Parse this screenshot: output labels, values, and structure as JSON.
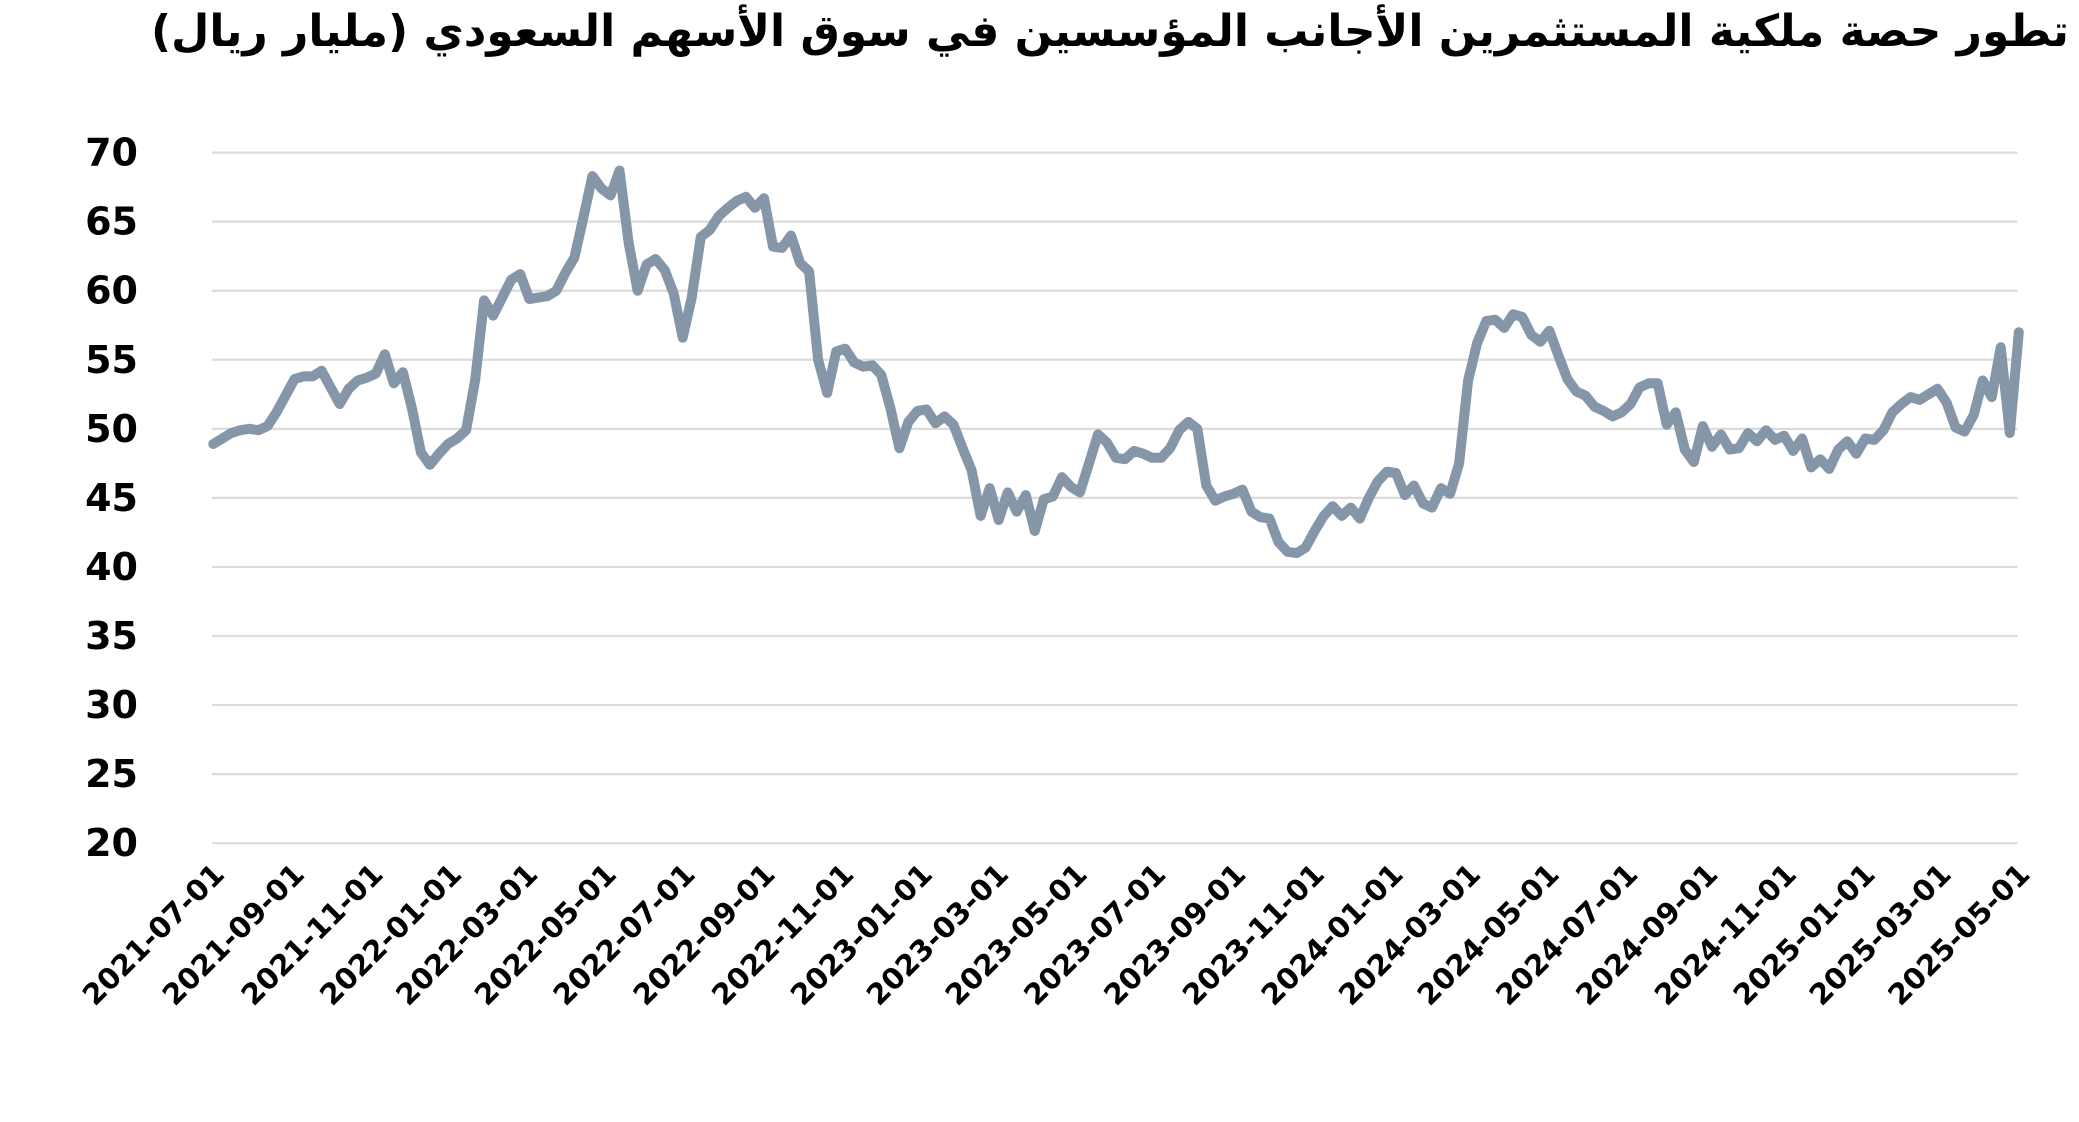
{
  "title": "تطور حصة ملكية المستثمرين الأجانب المؤسسين في سوق الأسهم السعودي (مليار ريال)",
  "colors": {
    "line": "#8496A8",
    "grid": "#DCDCDC",
    "text": "#000000",
    "background": "#FFFFFF"
  },
  "chart_data": {
    "type": "line",
    "title": "تطور حصة ملكية المستثمرين الأجانب المؤسسين في سوق الأسهم السعودي (مليار ريال)",
    "xlabel": "",
    "ylabel": "",
    "ylim": [
      20,
      70
    ],
    "yticks": [
      20,
      25,
      30,
      35,
      40,
      45,
      50,
      55,
      60,
      65,
      70
    ],
    "x_range": [
      "2021-07-01",
      "2025-05-01"
    ],
    "xtick_labels": [
      "2021-07-01",
      "2021-09-01",
      "2021-11-01",
      "2022-01-01",
      "2022-03-01",
      "2022-05-01",
      "2022-07-01",
      "2022-09-01",
      "2022-11-01",
      "2023-01-01",
      "2023-03-01",
      "2023-05-01",
      "2023-07-01",
      "2023-09-01",
      "2023-11-01",
      "2024-01-01",
      "2024-03-01",
      "2024-05-01",
      "2024-07-01",
      "2024-09-01",
      "2024-11-01",
      "2025-01-01",
      "2025-03-01",
      "2025-05-01"
    ],
    "grid": "horizontal",
    "legend_position": "none",
    "line_color": "#8496A8",
    "series": [
      {
        "name": "حصة ملكية المستثمرين الأجانب المؤسسين (مليار ريال)",
        "points": [
          [
            "2021-07-02",
            48.9
          ],
          [
            "2021-07-09",
            49.3
          ],
          [
            "2021-07-16",
            49.7
          ],
          [
            "2021-07-23",
            49.9
          ],
          [
            "2021-07-30",
            50.0
          ],
          [
            "2021-08-06",
            49.9
          ],
          [
            "2021-08-13",
            50.2
          ],
          [
            "2021-08-20",
            51.2
          ],
          [
            "2021-08-27",
            52.4
          ],
          [
            "2021-09-03",
            53.6
          ],
          [
            "2021-09-10",
            53.8
          ],
          [
            "2021-09-17",
            53.8
          ],
          [
            "2021-09-24",
            54.2
          ],
          [
            "2021-10-01",
            53.0
          ],
          [
            "2021-10-08",
            51.8
          ],
          [
            "2021-10-15",
            52.9
          ],
          [
            "2021-10-22",
            53.5
          ],
          [
            "2021-10-29",
            53.7
          ],
          [
            "2021-11-05",
            54.0
          ],
          [
            "2021-11-12",
            55.4
          ],
          [
            "2021-11-19",
            53.3
          ],
          [
            "2021-11-26",
            54.1
          ],
          [
            "2021-12-03",
            51.5
          ],
          [
            "2021-12-10",
            48.3
          ],
          [
            "2021-12-17",
            47.4
          ],
          [
            "2021-12-24",
            48.2
          ],
          [
            "2021-12-31",
            48.9
          ],
          [
            "2022-01-07",
            49.3
          ],
          [
            "2022-01-14",
            49.9
          ],
          [
            "2022-01-21",
            53.5
          ],
          [
            "2022-01-28",
            59.3
          ],
          [
            "2022-02-04",
            58.2
          ],
          [
            "2022-02-11",
            59.5
          ],
          [
            "2022-02-18",
            60.8
          ],
          [
            "2022-02-25",
            61.2
          ],
          [
            "2022-03-04",
            59.4
          ],
          [
            "2022-03-11",
            59.5
          ],
          [
            "2022-03-18",
            59.6
          ],
          [
            "2022-03-25",
            60.0
          ],
          [
            "2022-04-01",
            61.3
          ],
          [
            "2022-04-08",
            62.4
          ],
          [
            "2022-04-15",
            65.3
          ],
          [
            "2022-04-22",
            68.3
          ],
          [
            "2022-04-29",
            67.4
          ],
          [
            "2022-05-06",
            66.9
          ],
          [
            "2022-05-13",
            68.7
          ],
          [
            "2022-05-20",
            63.5
          ],
          [
            "2022-05-27",
            60.0
          ],
          [
            "2022-06-03",
            61.9
          ],
          [
            "2022-06-10",
            62.3
          ],
          [
            "2022-06-17",
            61.5
          ],
          [
            "2022-06-24",
            59.8
          ],
          [
            "2022-07-01",
            56.6
          ],
          [
            "2022-07-08",
            59.5
          ],
          [
            "2022-07-15",
            63.9
          ],
          [
            "2022-07-22",
            64.4
          ],
          [
            "2022-07-29",
            65.4
          ],
          [
            "2022-08-05",
            66.0
          ],
          [
            "2022-08-12",
            66.5
          ],
          [
            "2022-08-19",
            66.8
          ],
          [
            "2022-08-26",
            66.0
          ],
          [
            "2022-09-02",
            66.7
          ],
          [
            "2022-09-09",
            63.2
          ],
          [
            "2022-09-16",
            63.1
          ],
          [
            "2022-09-23",
            64.0
          ],
          [
            "2022-09-30",
            62.0
          ],
          [
            "2022-10-07",
            61.4
          ],
          [
            "2022-10-14",
            55.0
          ],
          [
            "2022-10-21",
            52.6
          ],
          [
            "2022-10-28",
            55.6
          ],
          [
            "2022-11-04",
            55.8
          ],
          [
            "2022-11-11",
            54.8
          ],
          [
            "2022-11-18",
            54.5
          ],
          [
            "2022-11-25",
            54.6
          ],
          [
            "2022-12-02",
            53.9
          ],
          [
            "2022-12-09",
            51.5
          ],
          [
            "2022-12-16",
            48.6
          ],
          [
            "2022-12-23",
            50.5
          ],
          [
            "2022-12-30",
            51.3
          ],
          [
            "2023-01-06",
            51.4
          ],
          [
            "2023-01-13",
            50.4
          ],
          [
            "2023-01-20",
            50.9
          ],
          [
            "2023-01-27",
            50.3
          ],
          [
            "2023-02-03",
            48.6
          ],
          [
            "2023-02-10",
            47.0
          ],
          [
            "2023-02-17",
            43.7
          ],
          [
            "2023-02-24",
            45.7
          ],
          [
            "2023-03-03",
            43.4
          ],
          [
            "2023-03-10",
            45.4
          ],
          [
            "2023-03-17",
            44.0
          ],
          [
            "2023-03-24",
            45.2
          ],
          [
            "2023-03-31",
            42.6
          ],
          [
            "2023-04-07",
            44.9
          ],
          [
            "2023-04-14",
            45.1
          ],
          [
            "2023-04-21",
            46.5
          ],
          [
            "2023-04-28",
            45.8
          ],
          [
            "2023-05-05",
            45.4
          ],
          [
            "2023-05-12",
            47.5
          ],
          [
            "2023-05-19",
            49.6
          ],
          [
            "2023-05-26",
            49.0
          ],
          [
            "2023-06-02",
            47.9
          ],
          [
            "2023-06-09",
            47.8
          ],
          [
            "2023-06-16",
            48.4
          ],
          [
            "2023-06-23",
            48.2
          ],
          [
            "2023-06-30",
            47.9
          ],
          [
            "2023-07-07",
            47.9
          ],
          [
            "2023-07-14",
            48.6
          ],
          [
            "2023-07-21",
            49.9
          ],
          [
            "2023-07-28",
            50.5
          ],
          [
            "2023-08-04",
            50.0
          ],
          [
            "2023-08-11",
            45.9
          ],
          [
            "2023-08-18",
            44.8
          ],
          [
            "2023-08-25",
            45.1
          ],
          [
            "2023-09-01",
            45.3
          ],
          [
            "2023-09-08",
            45.6
          ],
          [
            "2023-09-15",
            44.0
          ],
          [
            "2023-09-22",
            43.6
          ],
          [
            "2023-09-29",
            43.5
          ],
          [
            "2023-10-06",
            41.8
          ],
          [
            "2023-10-13",
            41.1
          ],
          [
            "2023-10-20",
            41.0
          ],
          [
            "2023-10-27",
            41.4
          ],
          [
            "2023-11-03",
            42.6
          ],
          [
            "2023-11-10",
            43.7
          ],
          [
            "2023-11-17",
            44.4
          ],
          [
            "2023-11-24",
            43.7
          ],
          [
            "2023-12-01",
            44.3
          ],
          [
            "2023-12-08",
            43.5
          ],
          [
            "2023-12-15",
            45.0
          ],
          [
            "2023-12-22",
            46.2
          ],
          [
            "2023-12-29",
            46.9
          ],
          [
            "2024-01-05",
            46.8
          ],
          [
            "2024-01-12",
            45.2
          ],
          [
            "2024-01-19",
            45.9
          ],
          [
            "2024-01-26",
            44.6
          ],
          [
            "2024-02-02",
            44.3
          ],
          [
            "2024-02-09",
            45.7
          ],
          [
            "2024-02-16",
            45.3
          ],
          [
            "2024-02-23",
            47.5
          ],
          [
            "2024-03-01",
            53.5
          ],
          [
            "2024-03-08",
            56.2
          ],
          [
            "2024-03-15",
            57.8
          ],
          [
            "2024-03-22",
            57.9
          ],
          [
            "2024-03-29",
            57.3
          ],
          [
            "2024-04-05",
            58.3
          ],
          [
            "2024-04-12",
            58.1
          ],
          [
            "2024-04-19",
            56.8
          ],
          [
            "2024-04-26",
            56.3
          ],
          [
            "2024-05-03",
            57.1
          ],
          [
            "2024-05-10",
            55.3
          ],
          [
            "2024-05-17",
            53.6
          ],
          [
            "2024-05-24",
            52.7
          ],
          [
            "2024-05-31",
            52.4
          ],
          [
            "2024-06-07",
            51.6
          ],
          [
            "2024-06-14",
            51.3
          ],
          [
            "2024-06-21",
            50.9
          ],
          [
            "2024-06-28",
            51.2
          ],
          [
            "2024-07-05",
            51.8
          ],
          [
            "2024-07-12",
            53.0
          ],
          [
            "2024-07-19",
            53.3
          ],
          [
            "2024-07-26",
            53.3
          ],
          [
            "2024-08-02",
            50.3
          ],
          [
            "2024-08-09",
            51.2
          ],
          [
            "2024-08-16",
            48.5
          ],
          [
            "2024-08-23",
            47.6
          ],
          [
            "2024-08-30",
            50.2
          ],
          [
            "2024-09-06",
            48.7
          ],
          [
            "2024-09-13",
            49.6
          ],
          [
            "2024-09-20",
            48.5
          ],
          [
            "2024-09-27",
            48.6
          ],
          [
            "2024-10-04",
            49.7
          ],
          [
            "2024-10-11",
            49.1
          ],
          [
            "2024-10-18",
            49.9
          ],
          [
            "2024-10-25",
            49.2
          ],
          [
            "2024-11-01",
            49.5
          ],
          [
            "2024-11-08",
            48.4
          ],
          [
            "2024-11-15",
            49.3
          ],
          [
            "2024-11-22",
            47.2
          ],
          [
            "2024-11-29",
            47.8
          ],
          [
            "2024-12-06",
            47.1
          ],
          [
            "2024-12-13",
            48.5
          ],
          [
            "2024-12-20",
            49.1
          ],
          [
            "2024-12-27",
            48.2
          ],
          [
            "2025-01-03",
            49.3
          ],
          [
            "2025-01-10",
            49.2
          ],
          [
            "2025-01-17",
            49.9
          ],
          [
            "2025-01-24",
            51.2
          ],
          [
            "2025-01-31",
            51.8
          ],
          [
            "2025-02-07",
            52.3
          ],
          [
            "2025-02-14",
            52.1
          ],
          [
            "2025-02-21",
            52.5
          ],
          [
            "2025-02-28",
            52.9
          ],
          [
            "2025-03-07",
            51.9
          ],
          [
            "2025-03-14",
            50.1
          ],
          [
            "2025-03-21",
            49.8
          ],
          [
            "2025-03-28",
            51.0
          ],
          [
            "2025-04-04",
            53.5
          ],
          [
            "2025-04-11",
            52.3
          ],
          [
            "2025-04-18",
            55.9
          ],
          [
            "2025-04-25",
            49.7
          ],
          [
            "2025-05-02",
            57.0
          ]
        ]
      }
    ]
  }
}
